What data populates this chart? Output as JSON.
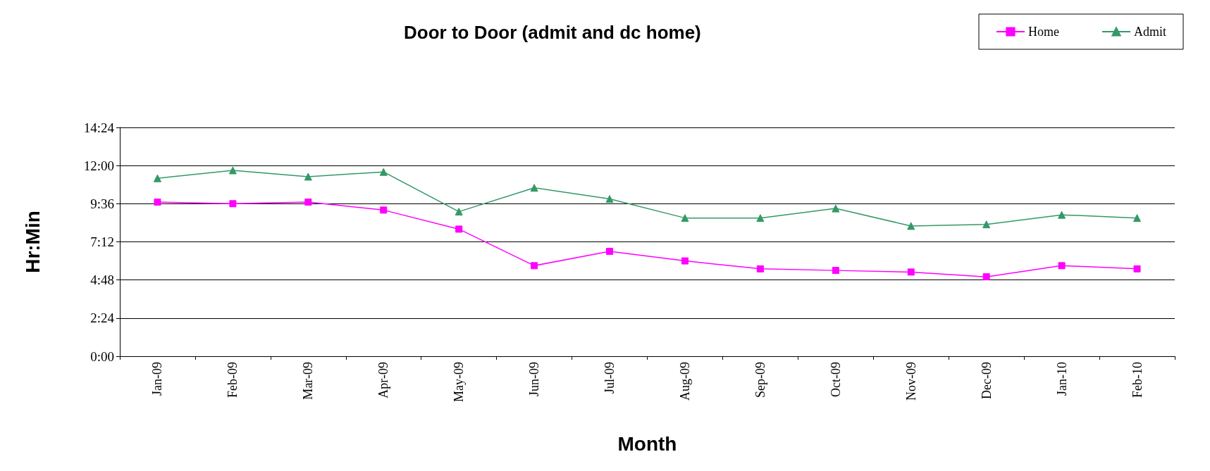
{
  "chart_data": {
    "type": "line",
    "title": "Door to Door (admit and dc home)",
    "xlabel": "Month",
    "ylabel": "Hr:Min",
    "categories": [
      "Jan-09",
      "Feb-09",
      "Mar-09",
      "Apr-09",
      "May-09",
      "Jun-09",
      "Jul-09",
      "Aug-09",
      "Sep-09",
      "Oct-09",
      "Nov-09",
      "Dec-09",
      "Jan-10",
      "Feb-10"
    ],
    "series": [
      {
        "name": "Home",
        "color": "#ff00ff",
        "marker": "square",
        "values": [
          9.7,
          9.6,
          9.7,
          9.2,
          8.0,
          5.7,
          6.6,
          6.0,
          5.5,
          5.4,
          5.3,
          5.0,
          5.7,
          5.5
        ]
      },
      {
        "name": "Admit",
        "color": "#339966",
        "marker": "triangle",
        "values": [
          11.2,
          11.7,
          11.3,
          11.6,
          9.1,
          10.6,
          9.9,
          8.7,
          8.7,
          9.3,
          8.2,
          8.3,
          8.9,
          8.7
        ]
      }
    ],
    "ylim": [
      0,
      14.4
    ],
    "yticks": [
      {
        "value": 0,
        "label": "0:00"
      },
      {
        "value": 2.4,
        "label": "2:24"
      },
      {
        "value": 4.8,
        "label": "4:48"
      },
      {
        "value": 7.2,
        "label": "7:12"
      },
      {
        "value": 9.6,
        "label": "9:36"
      },
      {
        "value": 12,
        "label": "12:00"
      },
      {
        "value": 14.4,
        "label": "14:24"
      }
    ],
    "grid": "y",
    "legend": "top right"
  }
}
